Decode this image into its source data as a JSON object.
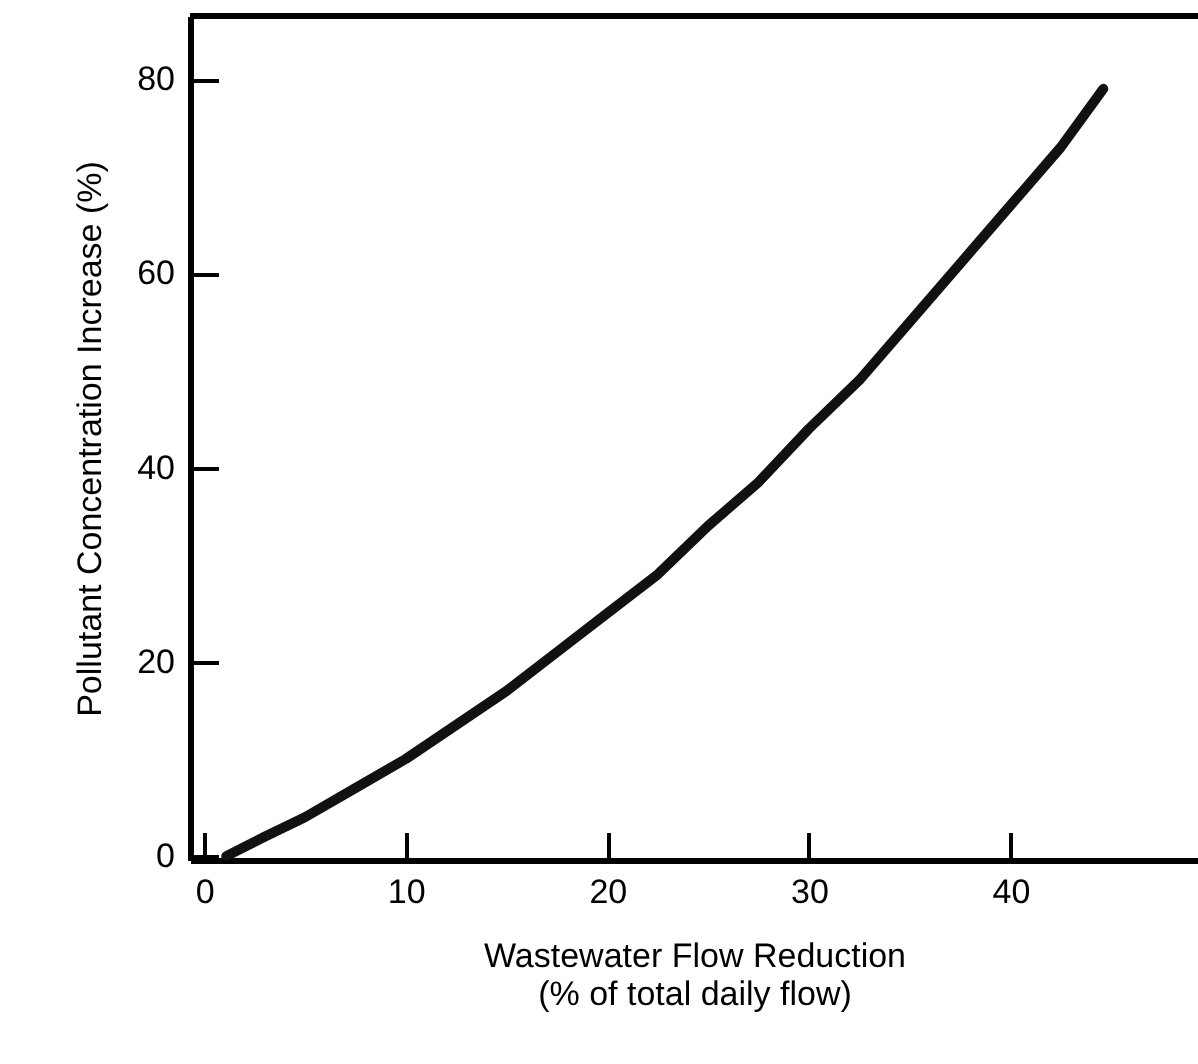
{
  "chart_data": {
    "type": "line",
    "xlabel": "Wastewater Flow Reduction\n(% of total daily flow)",
    "ylabel": "Pollutant Concentration Increase (%)",
    "x": [
      1.1,
      3,
      5,
      7.5,
      10,
      12.5,
      15,
      17.5,
      20,
      22.5,
      25,
      27.5,
      30,
      32.5,
      35,
      37.5,
      40,
      42.5,
      44.6
    ],
    "series": [
      {
        "color": "#111111",
        "values": [
          0,
          2,
          4,
          7,
          10,
          13.5,
          17,
          21,
          25,
          29,
          34,
          38.5,
          44,
          49,
          55,
          61,
          67,
          73,
          79
        ]
      }
    ],
    "xlim": [
      -0.7,
      49.3
    ],
    "ylim": [
      -0.4,
      86.5
    ],
    "xticks": [
      0,
      10,
      20,
      30,
      40
    ],
    "yticks": [
      0,
      20,
      40,
      60,
      80
    ],
    "grid": false,
    "marker": "none",
    "line_style": "solid"
  }
}
